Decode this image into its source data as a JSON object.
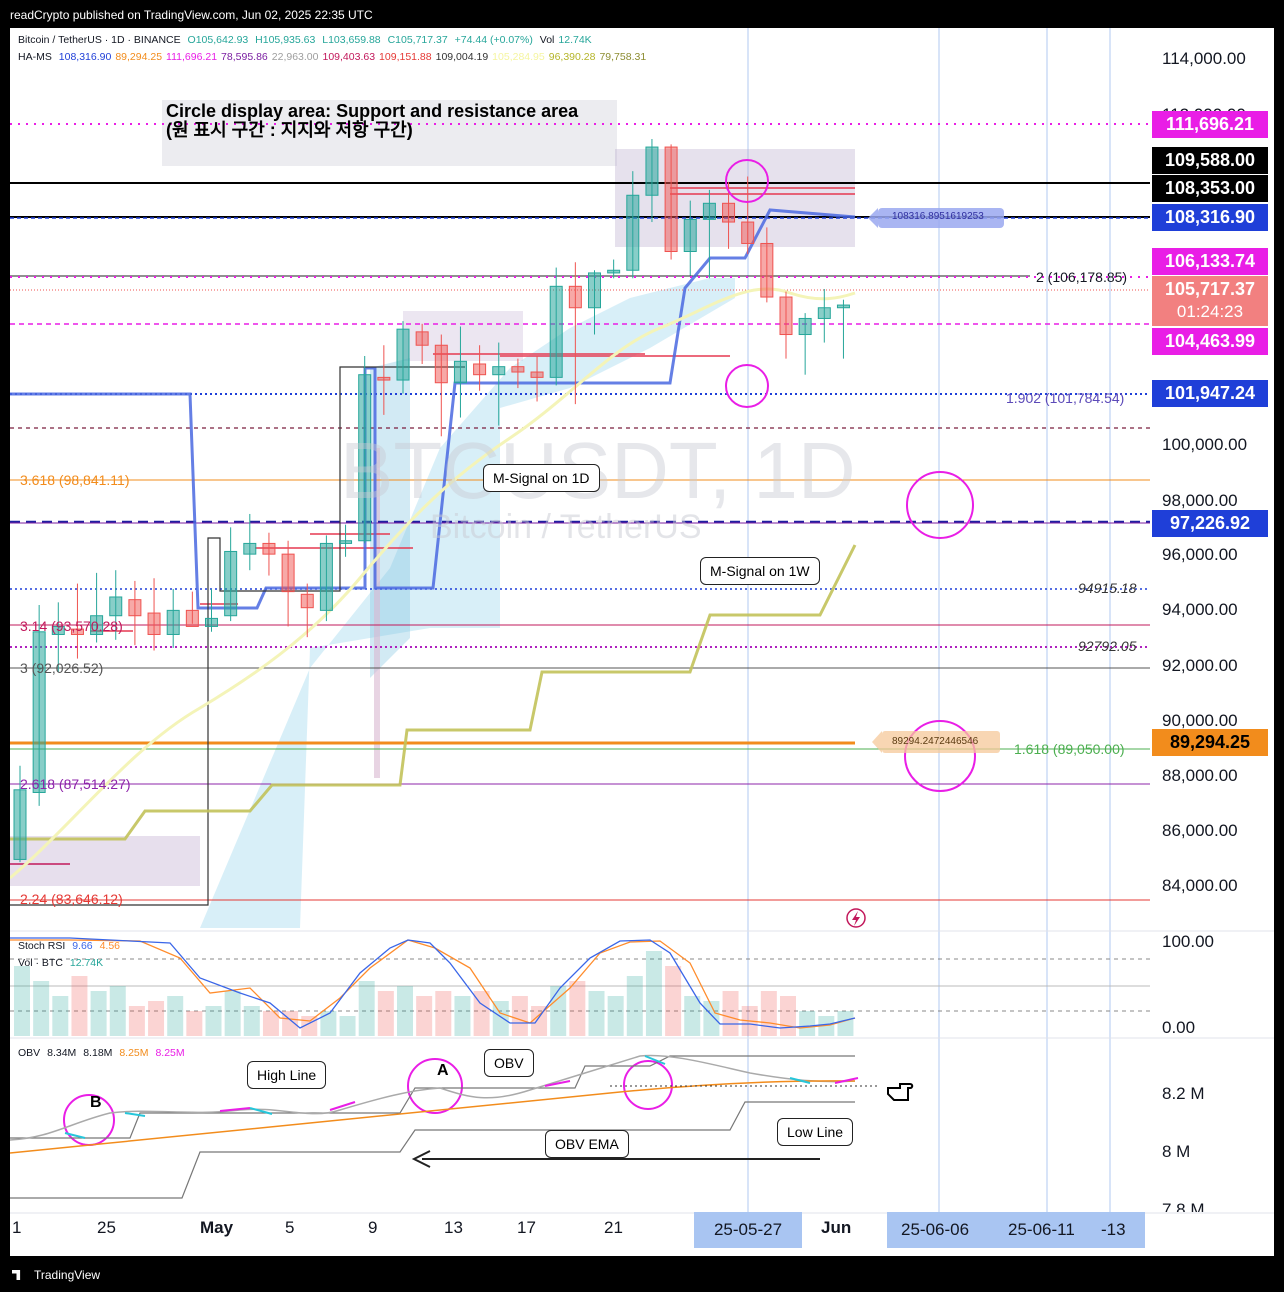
{
  "header": {
    "publisher": "readCrypto published on TradingView.com, Jun 02, 2025 22:35 UTC"
  },
  "footer": {
    "brand": "TradingView"
  },
  "legend": {
    "symbol": "Bitcoin / TetherUS · 1D · BINANCE",
    "o": "O105,642.93",
    "h": "H105,935.63",
    "l": "L103,659.88",
    "c": "C105,717.37",
    "chg": "+74.44 (+0.07%)",
    "vol_label": "Vol",
    "vol": "12.74K",
    "hams_label": "HA-MS",
    "hams": [
      {
        "v": "108,316.90",
        "c": "#1f3fd8"
      },
      {
        "v": "89,294.25",
        "c": "#f28c1c"
      },
      {
        "v": "111,696.21",
        "c": "#e91ee6"
      },
      {
        "v": "78,595.86",
        "c": "#7b1fa2"
      },
      {
        "v": "22,963.00",
        "c": "#9e9e9e"
      },
      {
        "v": "109,403.63",
        "c": "#c2185b"
      },
      {
        "v": "109,151.88",
        "c": "#e53935"
      },
      {
        "v": "109,004.19",
        "c": "#333333"
      },
      {
        "v": "105,284.95",
        "c": "#f5f5a0"
      },
      {
        "v": "96,390.28",
        "c": "#b5b52a"
      },
      {
        "v": "79,758.31",
        "c": "#8d8d32"
      }
    ]
  },
  "annotation": {
    "line1": "Circle display area: Support and resistance area",
    "line2": "(원 표시 구간 : 지지와 저항 구간)"
  },
  "watermark": {
    "big": "BTCUSDT, 1D",
    "small": "Bitcoin / TetherUS"
  },
  "price_axis": [
    "114,000.00",
    "100,000.00",
    "98,000.00",
    "96,000.00",
    "94,000.00",
    "92,000.00",
    "90,000.00",
    "88,000.00",
    "86,000.00",
    "84,000.00"
  ],
  "price_axis_partial": "112,000.00",
  "tags": {
    "t111696": "111,696.21",
    "t109588": "109,588.00",
    "t108353": "108,353.00",
    "t108316": "108,316.90",
    "t106133": "106,133.74",
    "t105717": "105,717.37",
    "countdown": "01:24:23",
    "t104463": "104,463.99",
    "t101947": "101,947.24",
    "t97226": "97,226.92",
    "t89294": "89,294.25"
  },
  "levels": {
    "fib2": "2 (106,178.85)",
    "fib1902": "1.902 (101,784.54)",
    "fib3618": "3.618 (98,841.11)",
    "l94915": "94915.18",
    "fib314": "3.14 (93,570.28)",
    "l92792": "92792.05",
    "fib3": "3 (92,026.52)",
    "fib1618": "1.618 (89,050.00)",
    "fib2618": "2.618 (87,514.27)",
    "fib224": "2.24 (83,646.12)",
    "label108316": "108316.8951619253",
    "label89294": "89294.2472446546"
  },
  "callouts": {
    "msig1d": "M-Signal on 1D",
    "msig1w": "M-Signal on 1W",
    "highline": "High Line",
    "obv": "OBV",
    "obvema": "OBV EMA",
    "lowline": "Low Line",
    "a": "A",
    "b": "B"
  },
  "stoch": {
    "label": "Stoch RSI",
    "k": "9.66",
    "d": "4.56",
    "vol_label": "Vol · BTC",
    "vol": "12.74K",
    "axis_top": "100.00",
    "axis_bottom": "0.00"
  },
  "obv_pane": {
    "label": "OBV",
    "v1": "8.34M",
    "v2": "8.18M",
    "v3": "8.25M",
    "v4": "8.25M",
    "axis": [
      "8.2 M",
      "8 M",
      "7.8 M"
    ]
  },
  "date_axis": [
    "1",
    "25",
    "May",
    "5",
    "9",
    "13",
    "17",
    "21",
    "Jun"
  ],
  "date_badges": [
    "25-05-27",
    "25-06-06",
    "25-06-11",
    "-13"
  ],
  "colors": {
    "up": "#26a69a",
    "down": "#ef5350",
    "magenta": "#e91ee6",
    "blue": "#1f3fd8",
    "orange": "#f28c1c"
  },
  "chart_data": {
    "type": "candlestick",
    "ylim": [
      83000,
      115000
    ],
    "candles": [
      {
        "o": 85000,
        "h": 88500,
        "l": 84900,
        "c": 87600
      },
      {
        "o": 87500,
        "h": 94500,
        "l": 87000,
        "c": 93500
      },
      {
        "o": 93400,
        "h": 94600,
        "l": 92000,
        "c": 93700
      },
      {
        "o": 93600,
        "h": 95300,
        "l": 92500,
        "c": 93400
      },
      {
        "o": 93400,
        "h": 95700,
        "l": 93100,
        "c": 94100
      },
      {
        "o": 94100,
        "h": 95800,
        "l": 93200,
        "c": 94800
      },
      {
        "o": 94700,
        "h": 95400,
        "l": 93000,
        "c": 94100
      },
      {
        "o": 94200,
        "h": 95500,
        "l": 92800,
        "c": 93400
      },
      {
        "o": 93400,
        "h": 95100,
        "l": 92900,
        "c": 94300
      },
      {
        "o": 94300,
        "h": 95000,
        "l": 93800,
        "c": 93700
      },
      {
        "o": 93700,
        "h": 95100,
        "l": 93500,
        "c": 94000
      },
      {
        "o": 94100,
        "h": 97400,
        "l": 93900,
        "c": 96500
      },
      {
        "o": 96400,
        "h": 97900,
        "l": 95800,
        "c": 96800
      },
      {
        "o": 96800,
        "h": 97200,
        "l": 95600,
        "c": 96400
      },
      {
        "o": 96400,
        "h": 96900,
        "l": 93700,
        "c": 95000
      },
      {
        "o": 94900,
        "h": 95300,
        "l": 93300,
        "c": 94400
      },
      {
        "o": 94300,
        "h": 97100,
        "l": 93900,
        "c": 96800
      },
      {
        "o": 96800,
        "h": 97500,
        "l": 96300,
        "c": 96900
      },
      {
        "o": 96900,
        "h": 103800,
        "l": 96800,
        "c": 103100
      },
      {
        "o": 103000,
        "h": 104200,
        "l": 101600,
        "c": 102900
      },
      {
        "o": 102900,
        "h": 105100,
        "l": 102400,
        "c": 104800
      },
      {
        "o": 104700,
        "h": 105000,
        "l": 103500,
        "c": 104200
      },
      {
        "o": 104200,
        "h": 104600,
        "l": 100800,
        "c": 102800
      },
      {
        "o": 102800,
        "h": 104900,
        "l": 101500,
        "c": 103600
      },
      {
        "o": 103500,
        "h": 104200,
        "l": 102500,
        "c": 103100
      },
      {
        "o": 103100,
        "h": 104300,
        "l": 101200,
        "c": 103400
      },
      {
        "o": 103400,
        "h": 103700,
        "l": 102600,
        "c": 103200
      },
      {
        "o": 103200,
        "h": 103800,
        "l": 102100,
        "c": 103000
      },
      {
        "o": 103000,
        "h": 107100,
        "l": 102700,
        "c": 106400
      },
      {
        "o": 106400,
        "h": 107300,
        "l": 102000,
        "c": 105600
      },
      {
        "o": 105600,
        "h": 107000,
        "l": 104600,
        "c": 106900
      },
      {
        "o": 106900,
        "h": 107400,
        "l": 106700,
        "c": 107000
      },
      {
        "o": 107000,
        "h": 110700,
        "l": 106700,
        "c": 109800
      },
      {
        "o": 109800,
        "h": 111900,
        "l": 108800,
        "c": 111600
      },
      {
        "o": 111600,
        "h": 111700,
        "l": 107400,
        "c": 107700
      },
      {
        "o": 107700,
        "h": 109600,
        "l": 106800,
        "c": 108900
      },
      {
        "o": 108900,
        "h": 110000,
        "l": 106700,
        "c": 109500
      },
      {
        "o": 109500,
        "h": 110300,
        "l": 107800,
        "c": 108800
      },
      {
        "o": 108800,
        "h": 110500,
        "l": 107600,
        "c": 108000
      },
      {
        "o": 108000,
        "h": 108600,
        "l": 105800,
        "c": 106000
      },
      {
        "o": 106000,
        "h": 106200,
        "l": 103700,
        "c": 104600
      },
      {
        "o": 104600,
        "h": 105400,
        "l": 103100,
        "c": 105200
      },
      {
        "o": 105200,
        "h": 106300,
        "l": 104300,
        "c": 105600
      },
      {
        "o": 105600,
        "h": 105900,
        "l": 103700,
        "c": 105700
      }
    ]
  }
}
